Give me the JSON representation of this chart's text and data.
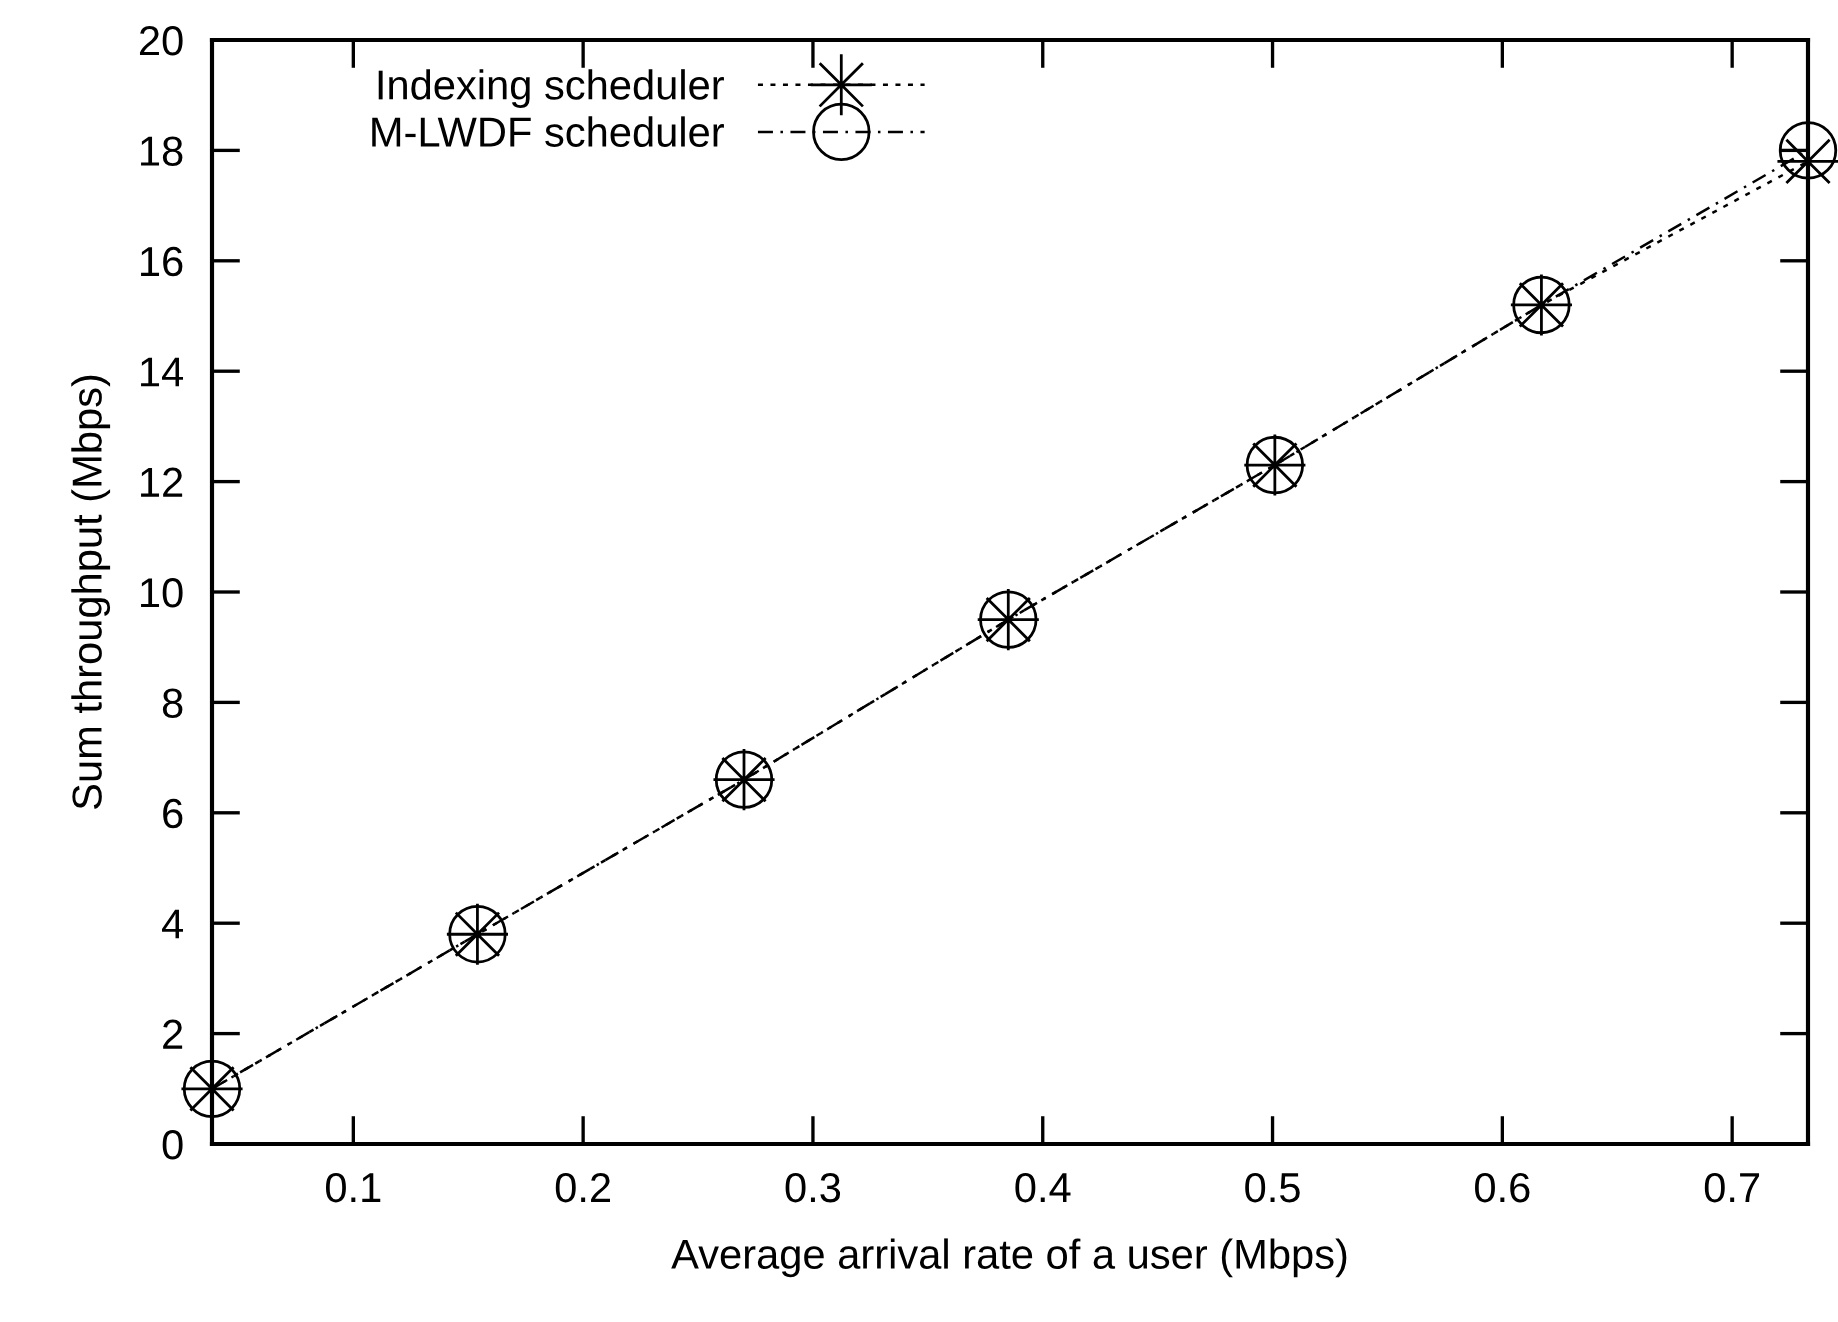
{
  "chart_data": {
    "type": "line",
    "xlabel": "Average arrival rate of a user (Mbps)",
    "ylabel": "Sum throughput (Mbps)",
    "x": [
      0.0385,
      0.154,
      0.27,
      0.385,
      0.501,
      0.617,
      0.733
    ],
    "series": [
      {
        "name": "Indexing scheduler",
        "color": "#000000",
        "marker": "star",
        "line_style": "dotted",
        "values": [
          1.0,
          3.8,
          6.6,
          9.5,
          12.3,
          15.2,
          17.8
        ]
      },
      {
        "name": "M-LWDF scheduler",
        "color": "#000000",
        "marker": "circle",
        "line_style": "dashdot",
        "values": [
          1.0,
          3.8,
          6.6,
          9.5,
          12.3,
          15.2,
          18.0
        ]
      }
    ],
    "xlim": [
      0.0385,
      0.733
    ],
    "ylim": [
      0,
      20
    ],
    "xticks": [
      0.1,
      0.2,
      0.3,
      0.4,
      0.5,
      0.6,
      0.7
    ],
    "yticks": [
      0,
      2,
      4,
      6,
      8,
      10,
      12,
      14,
      16,
      18,
      20
    ],
    "grid": false,
    "legend": "top left"
  }
}
